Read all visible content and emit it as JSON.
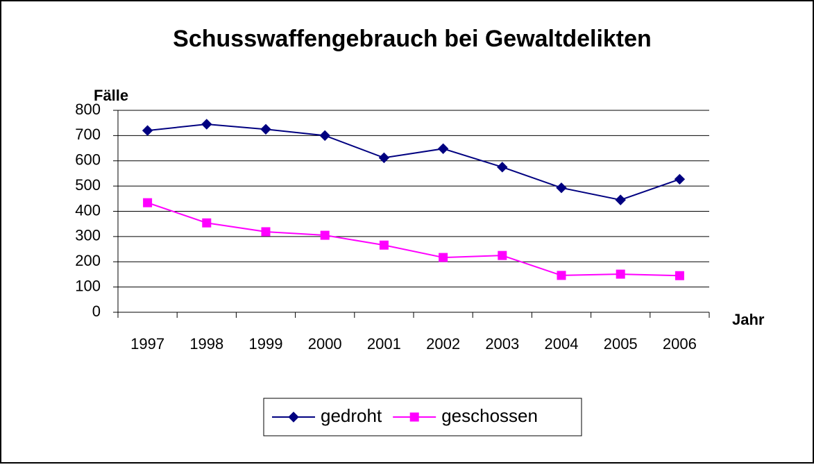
{
  "chart_data": {
    "type": "line",
    "title": "Schusswaffengebrauch bei Gewaltdelikten",
    "y_label": "Fälle",
    "x_label": "Jahr",
    "categories": [
      "1997",
      "1998",
      "1999",
      "2000",
      "2001",
      "2002",
      "2003",
      "2004",
      "2005",
      "2006"
    ],
    "series": [
      {
        "name": "gedroht",
        "color": "#000080",
        "marker": "diamond",
        "values": [
          720,
          745,
          725,
          700,
          612,
          648,
          575,
          493,
          445,
          527
        ]
      },
      {
        "name": "geschossen",
        "color": "#ff00ff",
        "marker": "square",
        "values": [
          434,
          354,
          319,
          305,
          266,
          217,
          225,
          146,
          151,
          145
        ]
      }
    ],
    "ylim": [
      0,
      800
    ],
    "yticks": [
      0,
      100,
      200,
      300,
      400,
      500,
      600,
      700,
      800
    ],
    "grid": true,
    "legend": "bottom"
  }
}
